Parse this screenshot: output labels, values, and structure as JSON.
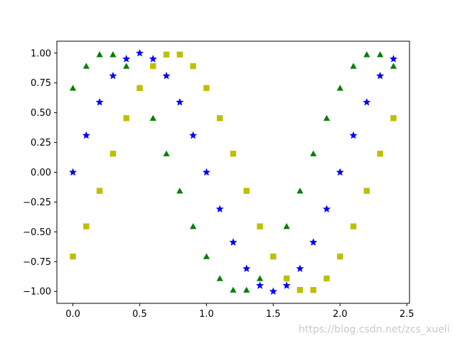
{
  "chart_data": {
    "type": "scatter",
    "title": "",
    "xlabel": "",
    "ylabel": "",
    "xlim": [
      -0.12,
      2.52
    ],
    "ylim": [
      -1.1,
      1.1
    ],
    "xticks": [
      0.0,
      0.5,
      1.0,
      1.5,
      2.0,
      2.5
    ],
    "xtick_labels": [
      "0.0",
      "0.5",
      "1.0",
      "1.5",
      "2.0",
      "2.5"
    ],
    "yticks": [
      -1.0,
      -0.75,
      -0.5,
      -0.25,
      0.0,
      0.25,
      0.5,
      0.75,
      1.0
    ],
    "ytick_labels": [
      "−1.00",
      "−0.75",
      "−0.50",
      "−0.25",
      "0.00",
      "0.25",
      "0.50",
      "0.75",
      "1.00"
    ],
    "grid": false,
    "x": [
      0.0,
      0.1,
      0.2,
      0.3,
      0.4,
      0.5,
      0.6,
      0.7,
      0.8,
      0.9,
      1.0,
      1.1,
      1.2,
      1.3,
      1.4,
      1.5,
      1.6,
      1.7,
      1.8,
      1.9,
      2.0,
      2.1,
      2.2,
      2.3,
      2.4
    ],
    "series": [
      {
        "marker": "star",
        "color": "#0000ff",
        "values": [
          0.0,
          0.309,
          0.588,
          0.809,
          0.951,
          1.0,
          0.951,
          0.809,
          0.588,
          0.309,
          0.0,
          -0.309,
          -0.588,
          -0.809,
          -0.951,
          -1.0,
          -0.951,
          -0.809,
          -0.588,
          -0.309,
          0.0,
          0.309,
          0.588,
          0.809,
          0.951
        ]
      },
      {
        "marker": "triangle",
        "color": "#008000",
        "values": [
          0.707,
          0.891,
          0.988,
          0.988,
          0.891,
          0.707,
          0.454,
          0.156,
          -0.156,
          -0.454,
          -0.707,
          -0.891,
          -0.988,
          -0.988,
          -0.891,
          -0.707,
          -0.454,
          -0.156,
          0.156,
          0.454,
          0.707,
          0.891,
          0.988,
          0.988,
          0.891
        ]
      },
      {
        "marker": "square",
        "color": "#bfbf00",
        "values": [
          -0.707,
          -0.454,
          -0.156,
          0.156,
          0.454,
          0.707,
          0.891,
          0.988,
          0.988,
          0.891,
          0.707,
          0.454,
          0.156,
          -0.156,
          -0.454,
          -0.707,
          -0.891,
          -0.988,
          -0.988,
          -0.891,
          -0.707,
          -0.454,
          -0.156,
          0.156,
          0.454
        ]
      }
    ]
  },
  "watermark": "https://blog.csdn.net/zcs_xueli"
}
